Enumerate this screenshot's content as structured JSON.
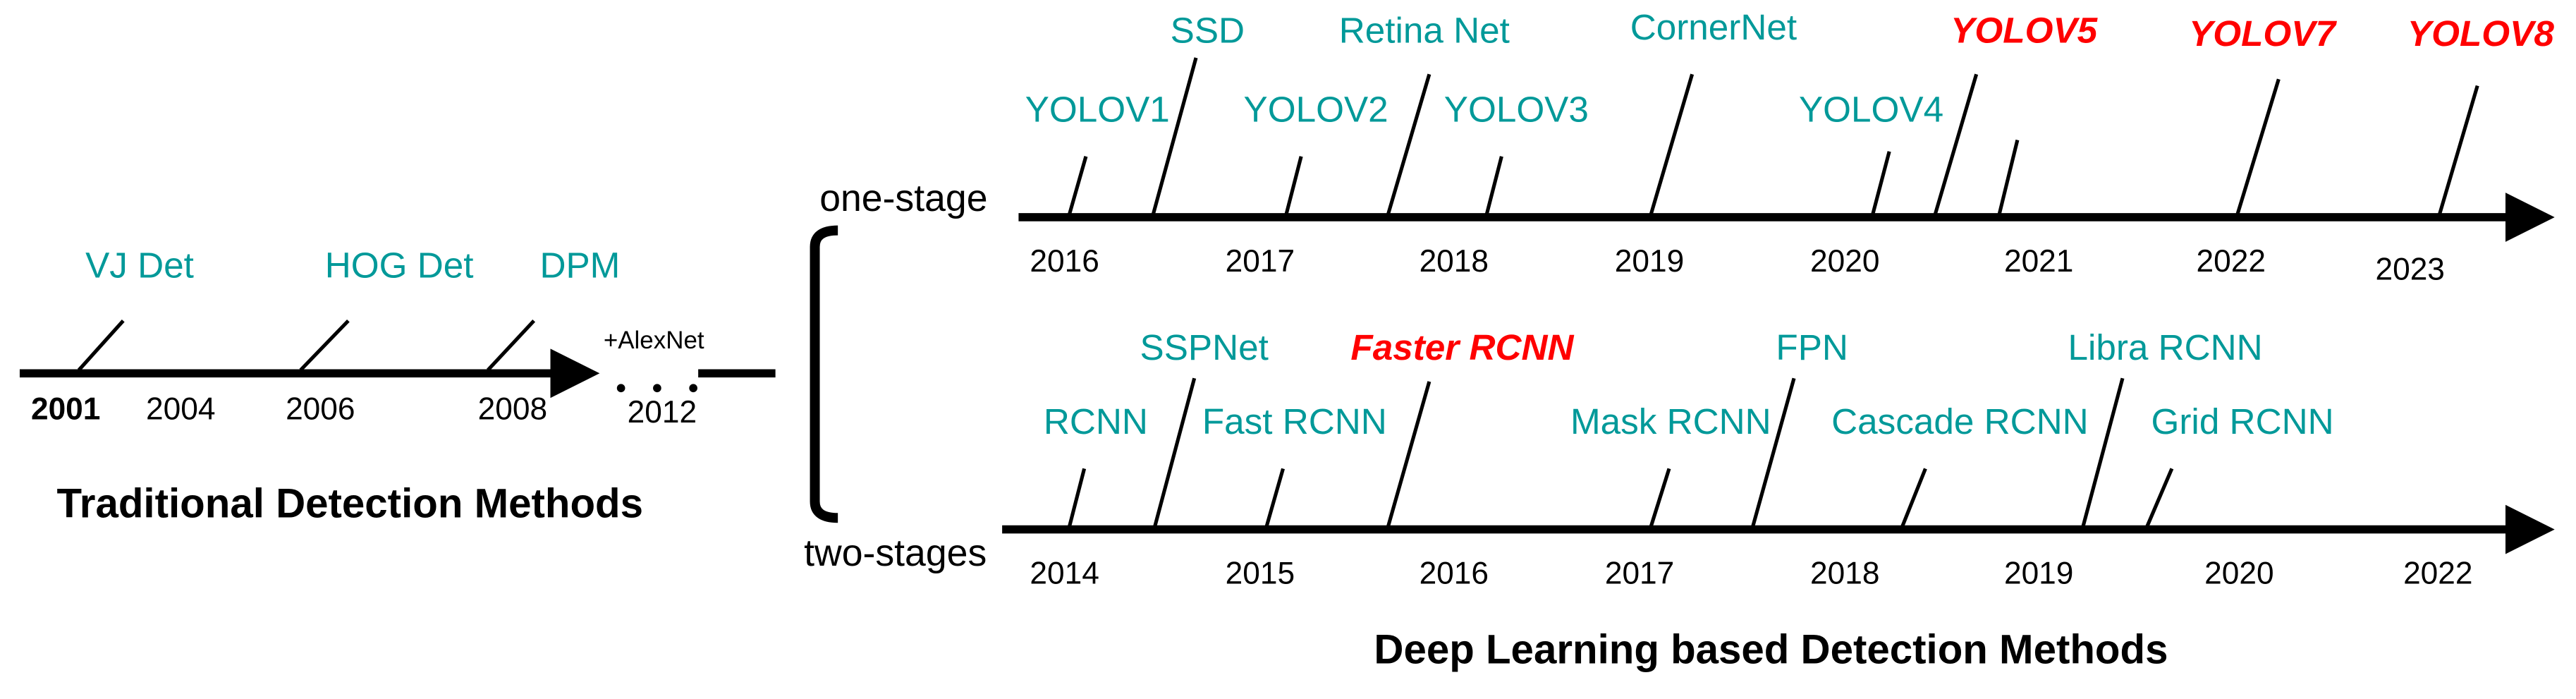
{
  "traditional": {
    "title": "Traditional Detection Methods",
    "events": [
      {
        "label": "VJ Det",
        "color": "#009999"
      },
      {
        "label": "HOG Det",
        "color": "#009999"
      },
      {
        "label": "DPM",
        "color": "#009999"
      }
    ],
    "years": [
      "2001",
      "2004",
      "2006",
      "2008"
    ],
    "note": "+AlexNet",
    "end_year": "2012"
  },
  "deep_learning": {
    "title": "Deep Learning based Detection Methods",
    "one_stage": {
      "label": "one-stage",
      "events": [
        {
          "label": "YOLOV1",
          "color": "#009999"
        },
        {
          "label": "SSD",
          "color": "#009999"
        },
        {
          "label": "YOLOV2",
          "color": "#009999"
        },
        {
          "label": "Retina Net",
          "color": "#009999"
        },
        {
          "label": "YOLOV3",
          "color": "#009999"
        },
        {
          "label": "CornerNet",
          "color": "#009999"
        },
        {
          "label": "YOLOV4",
          "color": "#009999"
        },
        {
          "label": "YOLOV5",
          "color": "#ff0000"
        },
        {
          "label": "YOLOV7",
          "color": "#ff0000"
        },
        {
          "label": "YOLOV8",
          "color": "#ff0000"
        }
      ],
      "years": [
        "2016",
        "2017",
        "2018",
        "2019",
        "2020",
        "2021",
        "2022",
        "2023"
      ]
    },
    "two_stage": {
      "label": "two-stages",
      "events": [
        {
          "label": "RCNN",
          "color": "#009999"
        },
        {
          "label": "SSPNet",
          "color": "#009999"
        },
        {
          "label": "Fast RCNN",
          "color": "#009999"
        },
        {
          "label": "Faster RCNN",
          "color": "#ff0000"
        },
        {
          "label": "Mask RCNN",
          "color": "#009999"
        },
        {
          "label": "FPN",
          "color": "#009999"
        },
        {
          "label": "Cascade RCNN",
          "color": "#009999"
        },
        {
          "label": "Libra RCNN",
          "color": "#009999"
        },
        {
          "label": "Grid RCNN",
          "color": "#009999"
        }
      ],
      "years": [
        "2014",
        "2015",
        "2016",
        "2017",
        "2018",
        "2019",
        "2020",
        "2022"
      ]
    }
  }
}
